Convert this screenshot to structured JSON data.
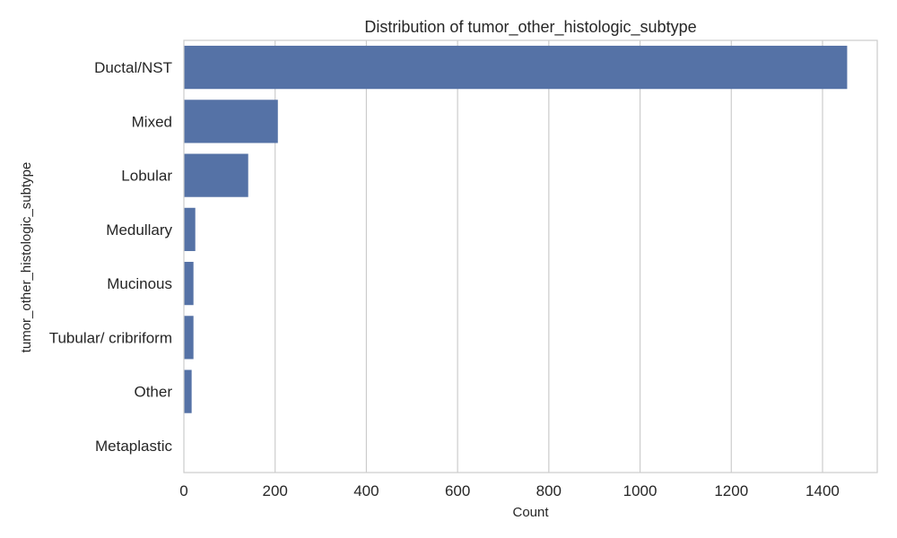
{
  "chart_data": {
    "type": "bar",
    "orientation": "horizontal",
    "title": "Distribution of tumor_other_histologic_subtype",
    "xlabel": "Count",
    "ylabel": "tumor_other_histologic_subtype",
    "categories": [
      "Ductal/NST",
      "Mixed",
      "Lobular",
      "Medullary",
      "Mucinous",
      "Tubular/ cribriform",
      "Other",
      "Metaplastic"
    ],
    "values": [
      1454,
      206,
      141,
      25,
      21,
      21,
      17,
      1
    ],
    "xlim": [
      0,
      1520
    ],
    "xticks": [
      0,
      200,
      400,
      600,
      800,
      1000,
      1200,
      1400
    ],
    "grid": "vertical",
    "bar_color": "#5572a6",
    "grid_color": "#cccccc"
  }
}
